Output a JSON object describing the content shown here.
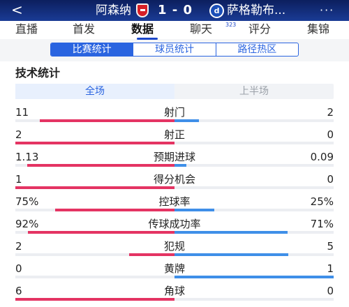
{
  "header": {
    "back_glyph": "<",
    "home_team": "阿森纳",
    "score": "1 - 0",
    "away_team": "萨格勒布...",
    "away_crest_letter": "d",
    "more_glyph": "···"
  },
  "tabs": [
    {
      "label": "直播"
    },
    {
      "label": "首发"
    },
    {
      "label": "数据",
      "active": true
    },
    {
      "label": "聊天",
      "badge": "323"
    },
    {
      "label": "评分"
    },
    {
      "label": "集锦"
    }
  ],
  "segment": [
    "比赛统计",
    "球员统计",
    "路径热区"
  ],
  "section_title": "技术统计",
  "period": {
    "full": "全场",
    "half": "上半场"
  },
  "colors": {
    "home": "#e43463",
    "away": "#3f8fe8",
    "accent": "#2a64e0"
  },
  "stats": [
    {
      "name": "射门",
      "left": "11",
      "right": "2",
      "left_share": 0.846,
      "right_share": 0.154
    },
    {
      "name": "射正",
      "left": "2",
      "right": "0",
      "left_share": 1.0,
      "right_share": 0.0
    },
    {
      "name": "预期进球",
      "left": "1.13",
      "right": "0.09",
      "left_share": 0.926,
      "right_share": 0.074
    },
    {
      "name": "得分机会",
      "left": "1",
      "right": "0",
      "left_share": 1.0,
      "right_share": 0.0
    },
    {
      "name": "控球率",
      "left": "75%",
      "right": "25%",
      "left_share": 0.75,
      "right_share": 0.25
    },
    {
      "name": "传球成功率",
      "left": "92%",
      "right": "71%",
      "left_share": 0.92,
      "right_share": 0.71
    },
    {
      "name": "犯规",
      "left": "2",
      "right": "5",
      "left_share": 0.286,
      "right_share": 0.714
    },
    {
      "name": "黄牌",
      "left": "0",
      "right": "1",
      "left_share": 0.0,
      "right_share": 1.0
    },
    {
      "name": "角球",
      "left": "6",
      "right": "0",
      "left_share": 1.0,
      "right_share": 0.0
    }
  ]
}
